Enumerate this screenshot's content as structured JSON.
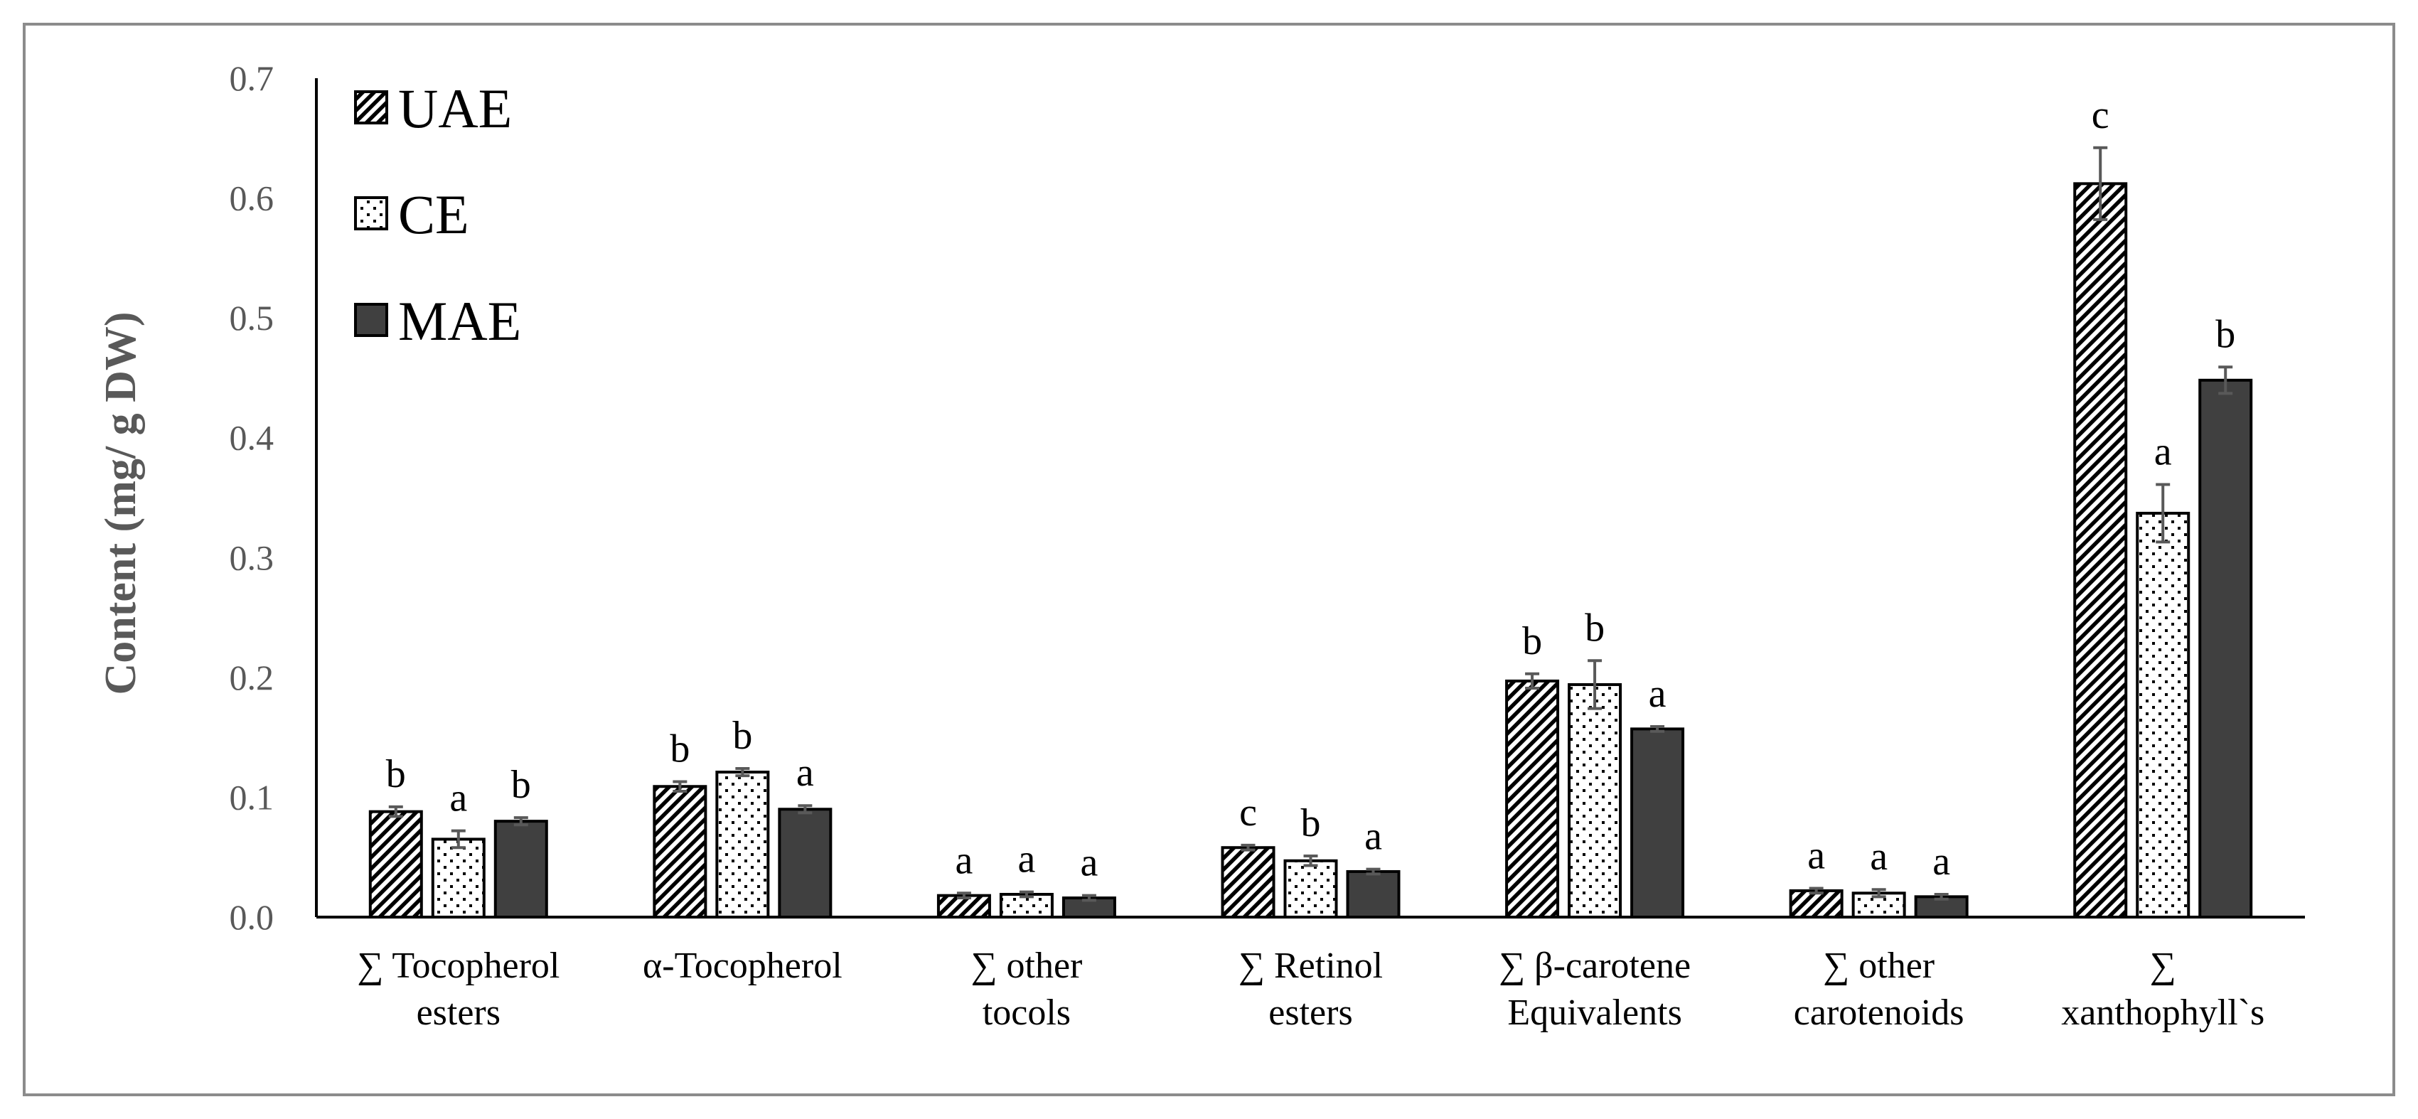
{
  "chart_data": {
    "type": "bar",
    "title": "",
    "xlabel": "",
    "ylabel": "Content (mg/ g DW)",
    "ylim": [
      0,
      0.7
    ],
    "yticks": [
      "0.0",
      "0.1",
      "0.2",
      "0.3",
      "0.4",
      "0.5",
      "0.6",
      "0.7"
    ],
    "grid": false,
    "legend_position": "top-left",
    "categories": [
      [
        "∑ Tocopherol",
        "esters"
      ],
      [
        "α-Tocopherol"
      ],
      [
        "∑ other",
        "tocols"
      ],
      [
        "∑ Retinol",
        "esters"
      ],
      [
        "∑ β-carotene",
        "Equivalents"
      ],
      [
        "∑ other",
        "carotenoids"
      ],
      [
        "∑",
        "xanthophyll`s"
      ]
    ],
    "series": [
      {
        "name": "UAE",
        "pattern": "hatch",
        "values": [
          0.088,
          0.109,
          0.018,
          0.058,
          0.197,
          0.022,
          0.612
        ],
        "errors": [
          0.004,
          0.004,
          0.002,
          0.002,
          0.006,
          0.002,
          0.03
        ],
        "letters": [
          "b",
          "b",
          "a",
          "c",
          "b",
          "a",
          "c"
        ]
      },
      {
        "name": "CE",
        "pattern": "dots",
        "values": [
          0.065,
          0.121,
          0.019,
          0.047,
          0.194,
          0.02,
          0.337
        ],
        "errors": [
          0.007,
          0.003,
          0.002,
          0.004,
          0.02,
          0.003,
          0.024
        ],
        "letters": [
          "a",
          "b",
          "a",
          "b",
          "b",
          "a",
          "a"
        ]
      },
      {
        "name": "MAE",
        "pattern": "solid",
        "values": [
          0.08,
          0.09,
          0.016,
          0.038,
          0.157,
          0.017,
          0.448
        ],
        "errors": [
          0.003,
          0.003,
          0.002,
          0.002,
          0.002,
          0.002,
          0.011
        ],
        "letters": [
          "b",
          "a",
          "a",
          "a",
          "a",
          "a",
          "b"
        ]
      }
    ],
    "colors": {
      "solid": "#404040",
      "axis": "#000000",
      "text_gray": "#595959",
      "error": "#595959"
    }
  }
}
